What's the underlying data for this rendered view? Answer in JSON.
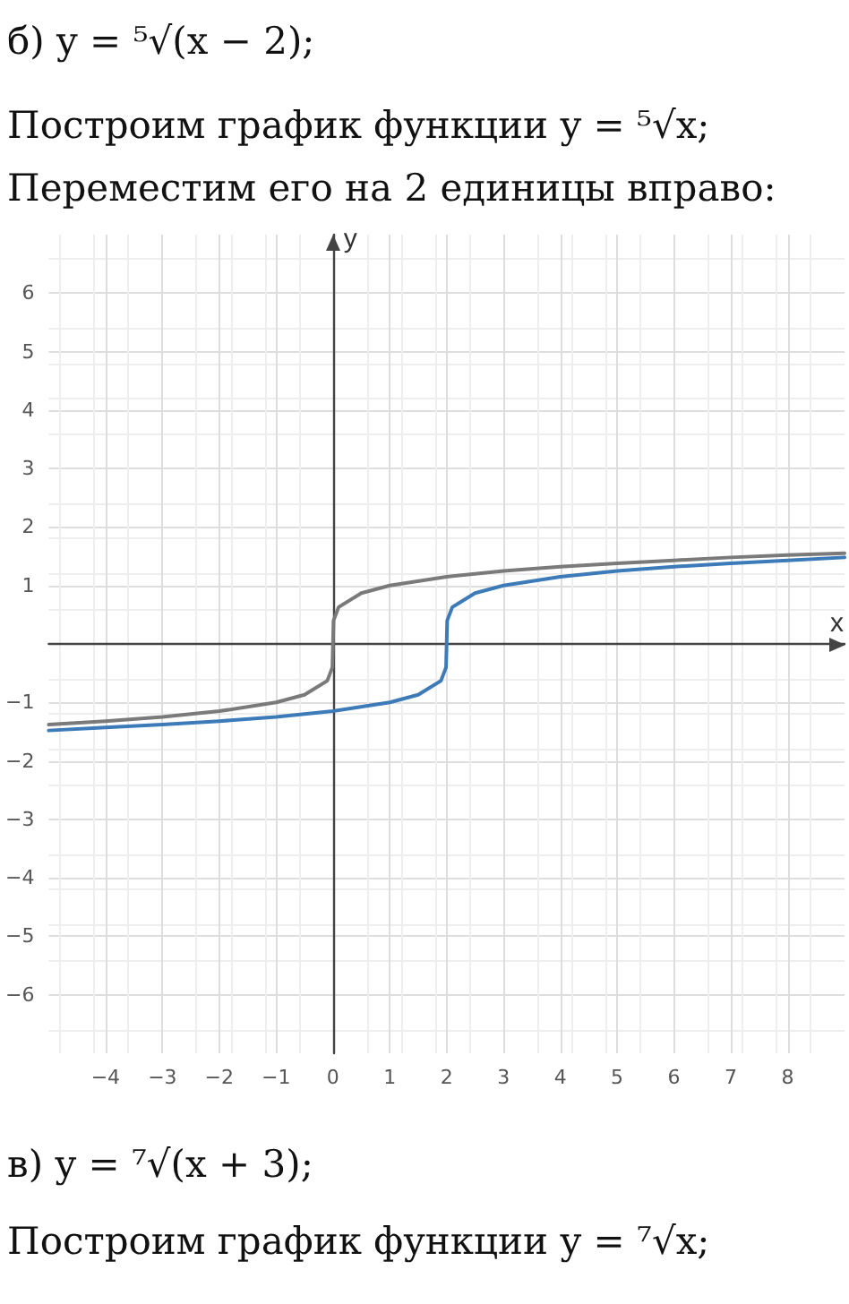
{
  "chart_data": {
    "type": "line",
    "title": "б) y = ⁵√(x − 2);",
    "subtitle": "Построим график функции y = ⁵√x;",
    "annotations": [
      "Переместим его на 2 единицы вправо:",
      "в) y = ⁷√(x + 3);",
      "Построим график функции y = ⁷√x;"
    ],
    "xlabel": "x",
    "ylabel": "y",
    "series": [
      {
        "color": "#7a7a7a",
        "x": [
          -5,
          -4,
          -3,
          -2,
          -1,
          -0.5,
          -0.1,
          -0.01,
          0,
          0.01,
          0.1,
          0.5,
          1,
          2,
          3,
          4,
          5,
          6,
          7,
          8,
          9
        ],
        "values": [
          -1.38,
          -1.32,
          -1.25,
          -1.15,
          -1,
          -0.87,
          -0.63,
          -0.4,
          0,
          0.4,
          0.63,
          0.87,
          1,
          1.15,
          1.25,
          1.32,
          1.38,
          1.43,
          1.48,
          1.52,
          1.55
        ]
      },
      {
        "color": "#3d7ab8",
        "x": [
          -5,
          -4,
          -3,
          -2,
          -1,
          0,
          1,
          1.5,
          1.9,
          1.99,
          2,
          2.01,
          2.1,
          2.5,
          3,
          4,
          5,
          6,
          7,
          8,
          9
        ],
        "values": [
          -1.48,
          -1.43,
          -1.38,
          -1.32,
          -1.25,
          -1.15,
          -1,
          -0.87,
          -0.63,
          -0.4,
          0,
          0.4,
          0.63,
          0.87,
          1,
          1.15,
          1.25,
          1.32,
          1.38,
          1.43,
          1.48
        ]
      }
    ],
    "xlim": [
      -5,
      9
    ],
    "ylim": [
      -7,
      7
    ],
    "xticks": [
      -4,
      -3,
      -2,
      -1,
      0,
      1,
      2,
      3,
      4,
      5,
      6,
      7,
      8
    ],
    "yticks": [
      -6,
      -5,
      -4,
      -3,
      -2,
      -1,
      {
        "value": 0,
        "label": null
      },
      1,
      2,
      3,
      4,
      5,
      6
    ],
    "grid": true,
    "marker": "none",
    "line_style": "solid"
  }
}
